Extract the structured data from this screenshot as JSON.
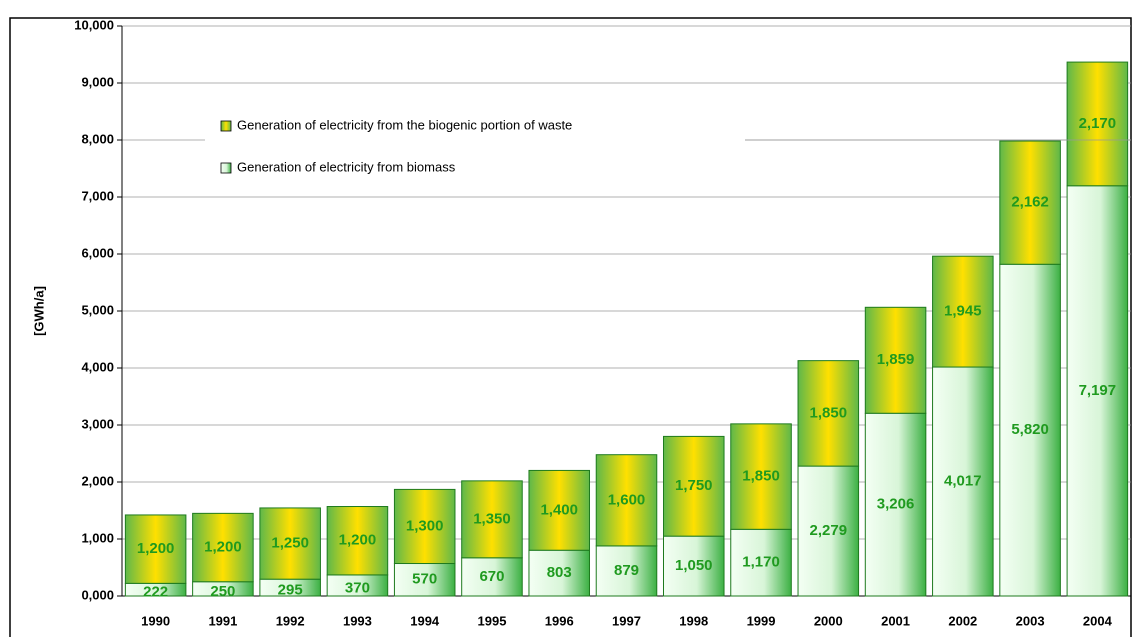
{
  "chart_data": {
    "type": "stacked-bar",
    "y_label": "[GWh/a]",
    "categories": [
      "1990",
      "1991",
      "1992",
      "1993",
      "1994",
      "1995",
      "1996",
      "1997",
      "1998",
      "1999",
      "2000",
      "2001",
      "2002",
      "2003",
      "2004"
    ],
    "series": [
      {
        "name": "Generation of electricity from biomass",
        "color": "#3cb043",
        "values": [
          222,
          250,
          295,
          370,
          570,
          670,
          803,
          879,
          1050,
          1170,
          2279,
          3206,
          4017,
          5820,
          7197
        ],
        "value_labels": [
          "222",
          "250",
          "295",
          "370",
          "570",
          "670",
          "803",
          "879",
          "1,050",
          "1,170",
          "2,279",
          "3,206",
          "4,017",
          "5,820",
          "7,197"
        ]
      },
      {
        "name": "Generation of electricity from the biogenic portion of waste",
        "color": "#ffe000",
        "values": [
          1200,
          1200,
          1250,
          1200,
          1300,
          1350,
          1400,
          1600,
          1750,
          1850,
          1850,
          1859,
          1945,
          2162,
          2170
        ],
        "value_labels": [
          "1,200",
          "1,200",
          "1,250",
          "1,200",
          "1,300",
          "1,350",
          "1,400",
          "1,600",
          "1,750",
          "1,850",
          "1,850",
          "1,859",
          "1,945",
          "2,162",
          "2,170"
        ]
      }
    ],
    "ylim": [
      0,
      10000
    ],
    "yticks": [
      {
        "value": 0,
        "label": "0,000"
      },
      {
        "value": 1000,
        "label": "1,000"
      },
      {
        "value": 2000,
        "label": "2,000"
      },
      {
        "value": 3000,
        "label": "3,000"
      },
      {
        "value": 4000,
        "label": "4,000"
      },
      {
        "value": 5000,
        "label": "5,000"
      },
      {
        "value": 6000,
        "label": "6,000"
      },
      {
        "value": 7000,
        "label": "7,000"
      },
      {
        "value": 8000,
        "label": "8,000"
      },
      {
        "value": 9000,
        "label": "9,000"
      },
      {
        "value": 10000,
        "label": "10,000"
      }
    ],
    "grid": true,
    "legend": "top-left"
  }
}
